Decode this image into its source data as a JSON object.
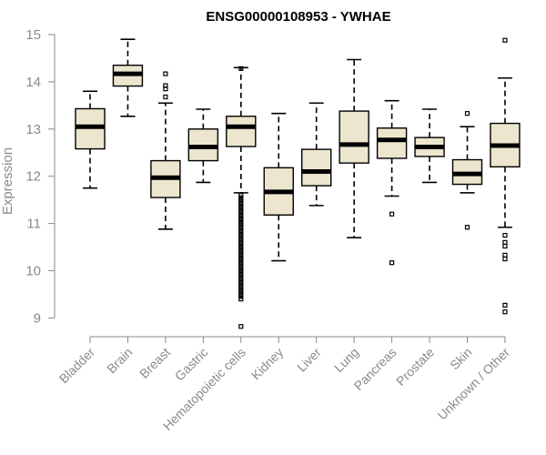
{
  "chart_data": {
    "type": "boxplot",
    "title": "ENSG00000108953 - YWHAE",
    "ylabel": "Expression",
    "xlabel": "",
    "ylim": [
      8.7,
      15.05
    ],
    "yticks": [
      9,
      10,
      11,
      12,
      13,
      14,
      15
    ],
    "box_fill": "#ede6cf",
    "categories": [
      "Bladder",
      "Brain",
      "Breast",
      "Gastric",
      "Hematopoietic cells",
      "Kidney",
      "Liver",
      "Lung",
      "Pancreas",
      "Prostate",
      "Skin",
      "Unknown / Other"
    ],
    "boxes": [
      {
        "whislo": 11.75,
        "q1": 12.58,
        "med": 13.05,
        "q3": 13.43,
        "whishi": 13.8,
        "fliers": []
      },
      {
        "whislo": 13.27,
        "q1": 13.91,
        "med": 14.17,
        "q3": 14.35,
        "whishi": 14.9,
        "fliers": []
      },
      {
        "whislo": 10.88,
        "q1": 11.55,
        "med": 11.97,
        "q3": 12.33,
        "whishi": 13.55,
        "fliers": [
          13.68,
          13.85,
          13.92,
          14.17
        ]
      },
      {
        "whislo": 11.87,
        "q1": 12.33,
        "med": 12.62,
        "q3": 13.0,
        "whishi": 13.42,
        "fliers": []
      },
      {
        "whislo": 11.65,
        "q1": 12.63,
        "med": 13.05,
        "q3": 13.27,
        "whishi": 14.3,
        "fliers": [
          14.28,
          11.6,
          11.55,
          11.5,
          11.45,
          11.4,
          11.35,
          11.3,
          11.25,
          11.2,
          11.15,
          11.1,
          11.05,
          11.0,
          10.95,
          10.9,
          10.85,
          10.8,
          10.75,
          10.7,
          10.65,
          10.6,
          10.55,
          10.5,
          10.45,
          10.4,
          10.35,
          10.3,
          10.25,
          10.2,
          10.15,
          10.1,
          10.05,
          10.0,
          9.95,
          9.9,
          9.85,
          9.8,
          9.75,
          9.7,
          9.65,
          9.6,
          9.55,
          9.5,
          9.45,
          9.4,
          8.82
        ]
      },
      {
        "whislo": 10.21,
        "q1": 11.18,
        "med": 11.67,
        "q3": 12.18,
        "whishi": 13.33,
        "fliers": []
      },
      {
        "whislo": 11.38,
        "q1": 11.8,
        "med": 12.1,
        "q3": 12.57,
        "whishi": 13.55,
        "fliers": []
      },
      {
        "whislo": 10.7,
        "q1": 12.28,
        "med": 12.67,
        "q3": 13.38,
        "whishi": 14.47,
        "fliers": []
      },
      {
        "whislo": 11.58,
        "q1": 12.38,
        "med": 12.77,
        "q3": 13.02,
        "whishi": 13.6,
        "fliers": [
          11.2,
          10.17
        ]
      },
      {
        "whislo": 11.87,
        "q1": 12.42,
        "med": 12.62,
        "q3": 12.82,
        "whishi": 13.42,
        "fliers": []
      },
      {
        "whislo": 11.65,
        "q1": 11.83,
        "med": 12.05,
        "q3": 12.35,
        "whishi": 13.05,
        "fliers": [
          13.33,
          10.92
        ]
      },
      {
        "whislo": 10.92,
        "q1": 12.2,
        "med": 12.65,
        "q3": 13.12,
        "whishi": 14.08,
        "fliers": [
          14.88,
          10.75,
          10.6,
          10.52,
          10.33,
          10.25,
          9.27,
          9.13
        ]
      }
    ]
  }
}
